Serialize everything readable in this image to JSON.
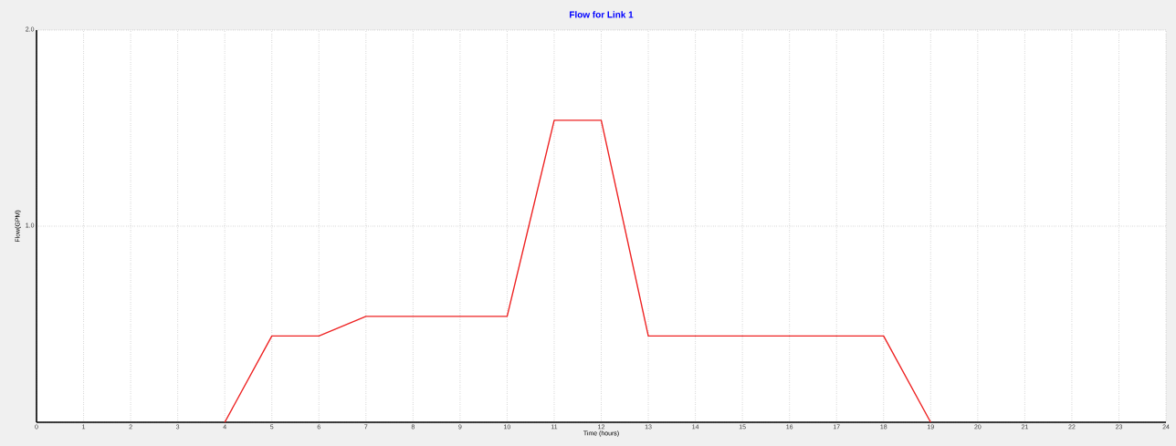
{
  "chart_data": {
    "type": "line",
    "title": "Flow for Link 1",
    "xlabel": "Time (hours)",
    "ylabel": "Flow(GPM)",
    "x": [
      4,
      5,
      6,
      7,
      8,
      9,
      10,
      11,
      12,
      13,
      14,
      15,
      16,
      17,
      18,
      19
    ],
    "series": [
      {
        "color": "#ee2222",
        "values": [
          0,
          0.44,
          0.44,
          0.54,
          0.54,
          0.54,
          0.54,
          1.54,
          1.54,
          0.44,
          0.44,
          0.44,
          0.44,
          0.44,
          0.44,
          0
        ]
      }
    ],
    "xlim": [
      0,
      24
    ],
    "xticks": [
      0,
      1,
      2,
      3,
      4,
      5,
      6,
      7,
      8,
      9,
      10,
      11,
      12,
      13,
      14,
      15,
      16,
      17,
      18,
      19,
      20,
      21,
      22,
      23,
      24
    ],
    "ylim": [
      0,
      2
    ],
    "yticks": [
      {
        "value": 0,
        "label": null
      },
      {
        "value": 1,
        "label": "1.0"
      },
      {
        "value": 2,
        "label": "2.0"
      }
    ],
    "grid": true,
    "marker": "none",
    "line_style": "solid"
  }
}
